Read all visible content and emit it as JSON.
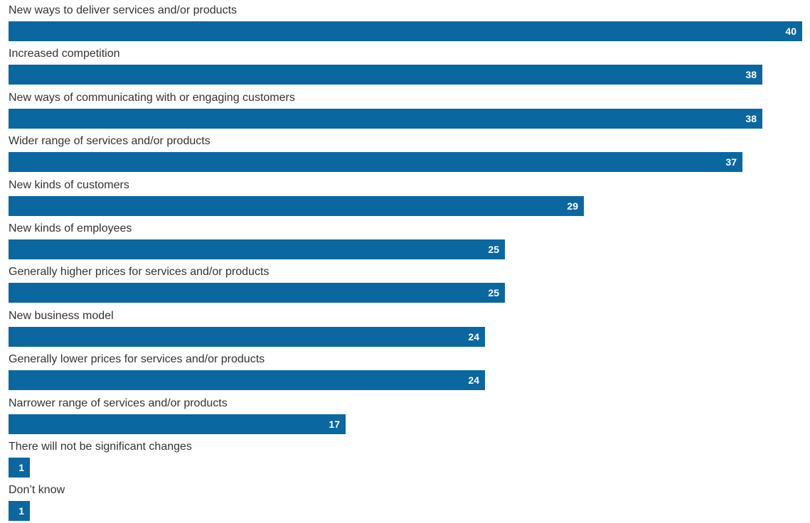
{
  "chart_data": {
    "type": "bar",
    "orientation": "horizontal",
    "title": "",
    "xlabel": "",
    "ylabel": "",
    "categories": [
      "New ways to deliver services and/or products",
      "Increased competition",
      "New ways of communicating with or engaging customers",
      "Wider range of services and/or products",
      "New kinds of customers",
      "New kinds of employees",
      "Generally higher prices for services and/or products",
      "New business model",
      "Generally lower prices for services and/or products",
      "Narrower range of services and/or products",
      "There will not be significant changes",
      "Don’t know"
    ],
    "values": [
      40,
      38,
      38,
      37,
      29,
      25,
      25,
      24,
      24,
      17,
      1,
      1
    ],
    "xlim": [
      0,
      40
    ],
    "grid": false,
    "legend": "none",
    "data_labels": "inside-end",
    "colors": {
      "bar": "#0b67a0",
      "label_text": "#333333",
      "value_text": "#ffffff"
    }
  }
}
